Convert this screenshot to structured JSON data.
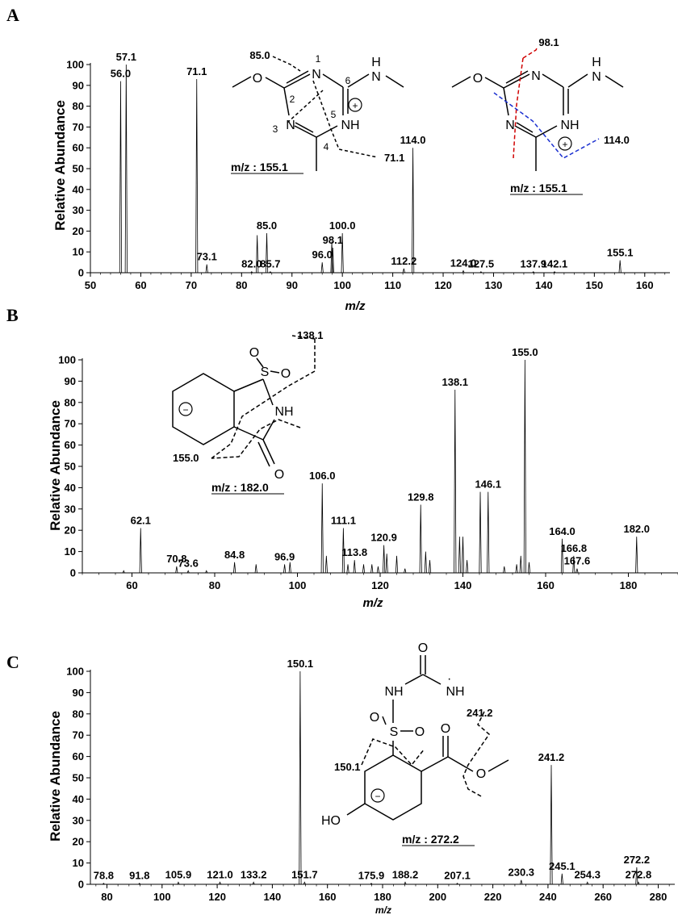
{
  "chart_data": [
    {
      "panel": "A",
      "type": "bar",
      "ylabel": "Relative Abundance",
      "xlabel": "m/z",
      "xlim": [
        50,
        165
      ],
      "ylim": [
        0,
        100
      ],
      "xticks": [
        50,
        60,
        70,
        80,
        90,
        100,
        110,
        120,
        130,
        140,
        150,
        160
      ],
      "yticks": [
        0,
        10,
        20,
        30,
        40,
        50,
        60,
        70,
        80,
        90,
        100
      ],
      "peaks": [
        {
          "x": 56.0,
          "y": 92,
          "label": "56.0"
        },
        {
          "x": 57.1,
          "y": 100,
          "label": "57.1"
        },
        {
          "x": 71.1,
          "y": 93,
          "label": "71.1"
        },
        {
          "x": 73.1,
          "y": 4,
          "label": "73.1"
        },
        {
          "x": 82.0,
          "y": 0.5,
          "label": "82.0"
        },
        {
          "x": 83.1,
          "y": 18,
          "label": ""
        },
        {
          "x": 85.0,
          "y": 19,
          "label": "85.0"
        },
        {
          "x": 85.7,
          "y": 0.5,
          "label": "85.7"
        },
        {
          "x": 96.0,
          "y": 5,
          "label": "96.0"
        },
        {
          "x": 97.9,
          "y": 15,
          "label": ""
        },
        {
          "x": 98.1,
          "y": 12,
          "label": "98.1"
        },
        {
          "x": 100.0,
          "y": 19,
          "label": "100.0"
        },
        {
          "x": 112.2,
          "y": 2,
          "label": "112.2"
        },
        {
          "x": 114.0,
          "y": 60,
          "label": "114.0"
        },
        {
          "x": 124.0,
          "y": 1,
          "label": "124.0"
        },
        {
          "x": 127.5,
          "y": 0.5,
          "label": "127.5"
        },
        {
          "x": 137.9,
          "y": 0.5,
          "label": "137.9"
        },
        {
          "x": 142.1,
          "y": 0.5,
          "label": "142.1"
        },
        {
          "x": 155.1,
          "y": 6,
          "label": "155.1"
        }
      ],
      "structures": [
        {
          "atoms": [
            "N",
            "N",
            "NH",
            "N",
            "H",
            "⊕"
          ],
          "ring_numbers": [
            "1",
            "2",
            "3",
            "4",
            "5",
            "6"
          ],
          "fragment_labels": [
            "85.0",
            "71.1"
          ],
          "mz_label": "m/z : 155.1"
        },
        {
          "atoms": [
            "N",
            "N",
            "NH",
            "N",
            "H",
            "⊕"
          ],
          "fragment_labels": [
            "98.1",
            "114.0"
          ],
          "mz_label": "m/z : 155.1"
        }
      ]
    },
    {
      "panel": "B",
      "type": "bar",
      "ylabel": "Relative Abundance",
      "xlabel": "m/z",
      "xlim": [
        48,
        192
      ],
      "ylim": [
        0,
        100
      ],
      "xticks": [
        60,
        80,
        100,
        120,
        140,
        160,
        180
      ],
      "yticks": [
        0,
        10,
        20,
        30,
        40,
        50,
        60,
        70,
        80,
        90,
        100
      ],
      "peaks": [
        {
          "x": 58.0,
          "y": 1,
          "label": ""
        },
        {
          "x": 62.1,
          "y": 21,
          "label": "62.1"
        },
        {
          "x": 70.8,
          "y": 3,
          "label": "70.8"
        },
        {
          "x": 73.6,
          "y": 1,
          "label": "73.6"
        },
        {
          "x": 78.0,
          "y": 1,
          "label": ""
        },
        {
          "x": 84.8,
          "y": 5,
          "label": "84.8"
        },
        {
          "x": 90.0,
          "y": 4,
          "label": ""
        },
        {
          "x": 96.9,
          "y": 4,
          "label": "96.9"
        },
        {
          "x": 98.2,
          "y": 5,
          "label": ""
        },
        {
          "x": 106.0,
          "y": 42,
          "label": "106.0"
        },
        {
          "x": 107.0,
          "y": 8,
          "label": ""
        },
        {
          "x": 111.1,
          "y": 21,
          "label": "111.1"
        },
        {
          "x": 112.2,
          "y": 4,
          "label": ""
        },
        {
          "x": 113.8,
          "y": 6,
          "label": "113.8"
        },
        {
          "x": 116.0,
          "y": 4,
          "label": ""
        },
        {
          "x": 118.0,
          "y": 4,
          "label": ""
        },
        {
          "x": 119.5,
          "y": 3,
          "label": ""
        },
        {
          "x": 120.9,
          "y": 13,
          "label": "120.9"
        },
        {
          "x": 121.6,
          "y": 9,
          "label": ""
        },
        {
          "x": 124.0,
          "y": 8,
          "label": ""
        },
        {
          "x": 126.0,
          "y": 2,
          "label": ""
        },
        {
          "x": 129.8,
          "y": 32,
          "label": "129.8"
        },
        {
          "x": 131.0,
          "y": 10,
          "label": ""
        },
        {
          "x": 132.0,
          "y": 6,
          "label": ""
        },
        {
          "x": 138.1,
          "y": 86,
          "label": "138.1"
        },
        {
          "x": 139.2,
          "y": 17,
          "label": ""
        },
        {
          "x": 140.0,
          "y": 17,
          "label": ""
        },
        {
          "x": 141.0,
          "y": 6,
          "label": ""
        },
        {
          "x": 144.2,
          "y": 38,
          "label": ""
        },
        {
          "x": 146.1,
          "y": 38,
          "label": "146.1"
        },
        {
          "x": 150.0,
          "y": 3,
          "label": ""
        },
        {
          "x": 153.0,
          "y": 4,
          "label": ""
        },
        {
          "x": 154.0,
          "y": 8,
          "label": ""
        },
        {
          "x": 155.0,
          "y": 100,
          "label": "155.0"
        },
        {
          "x": 156.0,
          "y": 5,
          "label": ""
        },
        {
          "x": 164.0,
          "y": 16,
          "label": "164.0"
        },
        {
          "x": 166.8,
          "y": 8,
          "label": "166.8"
        },
        {
          "x": 167.6,
          "y": 2,
          "label": "167.6"
        },
        {
          "x": 182.0,
          "y": 17,
          "label": "182.0"
        }
      ],
      "structures": [
        {
          "atoms": [
            "S",
            "O",
            "O",
            "NH",
            "O",
            "⊖"
          ],
          "fragment_labels": [
            "138.1",
            "155.0"
          ],
          "mz_label": "m/z : 182.0"
        }
      ]
    },
    {
      "panel": "C",
      "type": "bar",
      "ylabel": "Relative Abundance",
      "xlabel": "m/z",
      "xlim": [
        74,
        286
      ],
      "ylim": [
        0,
        100
      ],
      "xticks": [
        80,
        100,
        120,
        140,
        160,
        180,
        200,
        220,
        240,
        260,
        280
      ],
      "yticks": [
        0,
        10,
        20,
        30,
        40,
        50,
        60,
        70,
        80,
        90,
        100
      ],
      "peaks": [
        {
          "x": 78.8,
          "y": 0.5,
          "label": "78.8"
        },
        {
          "x": 91.8,
          "y": 0.5,
          "label": "91.8"
        },
        {
          "x": 105.9,
          "y": 1,
          "label": "105.9"
        },
        {
          "x": 121.0,
          "y": 1,
          "label": "121.0"
        },
        {
          "x": 133.2,
          "y": 1,
          "label": "133.2"
        },
        {
          "x": 150.1,
          "y": 100,
          "label": "150.1"
        },
        {
          "x": 151.7,
          "y": 1,
          "label": "151.7"
        },
        {
          "x": 175.9,
          "y": 0.5,
          "label": "175.9"
        },
        {
          "x": 188.2,
          "y": 1,
          "label": "188.2"
        },
        {
          "x": 207.1,
          "y": 0.5,
          "label": "207.1"
        },
        {
          "x": 230.3,
          "y": 2,
          "label": "230.3"
        },
        {
          "x": 241.2,
          "y": 56,
          "label": "241.2"
        },
        {
          "x": 245.1,
          "y": 5,
          "label": "245.1"
        },
        {
          "x": 254.3,
          "y": 1,
          "label": "254.3"
        },
        {
          "x": 272.2,
          "y": 8,
          "label": "272.2"
        },
        {
          "x": 272.8,
          "y": 1,
          "label": "272.8"
        }
      ],
      "structures": [
        {
          "atoms": [
            "O",
            "NH",
            "NH",
            "S",
            "O",
            "O",
            "O",
            "O",
            "HO",
            "⊖"
          ],
          "fragment_labels": [
            "241.2",
            "150.1"
          ],
          "mz_label": "m/z : 272.2"
        }
      ]
    }
  ]
}
